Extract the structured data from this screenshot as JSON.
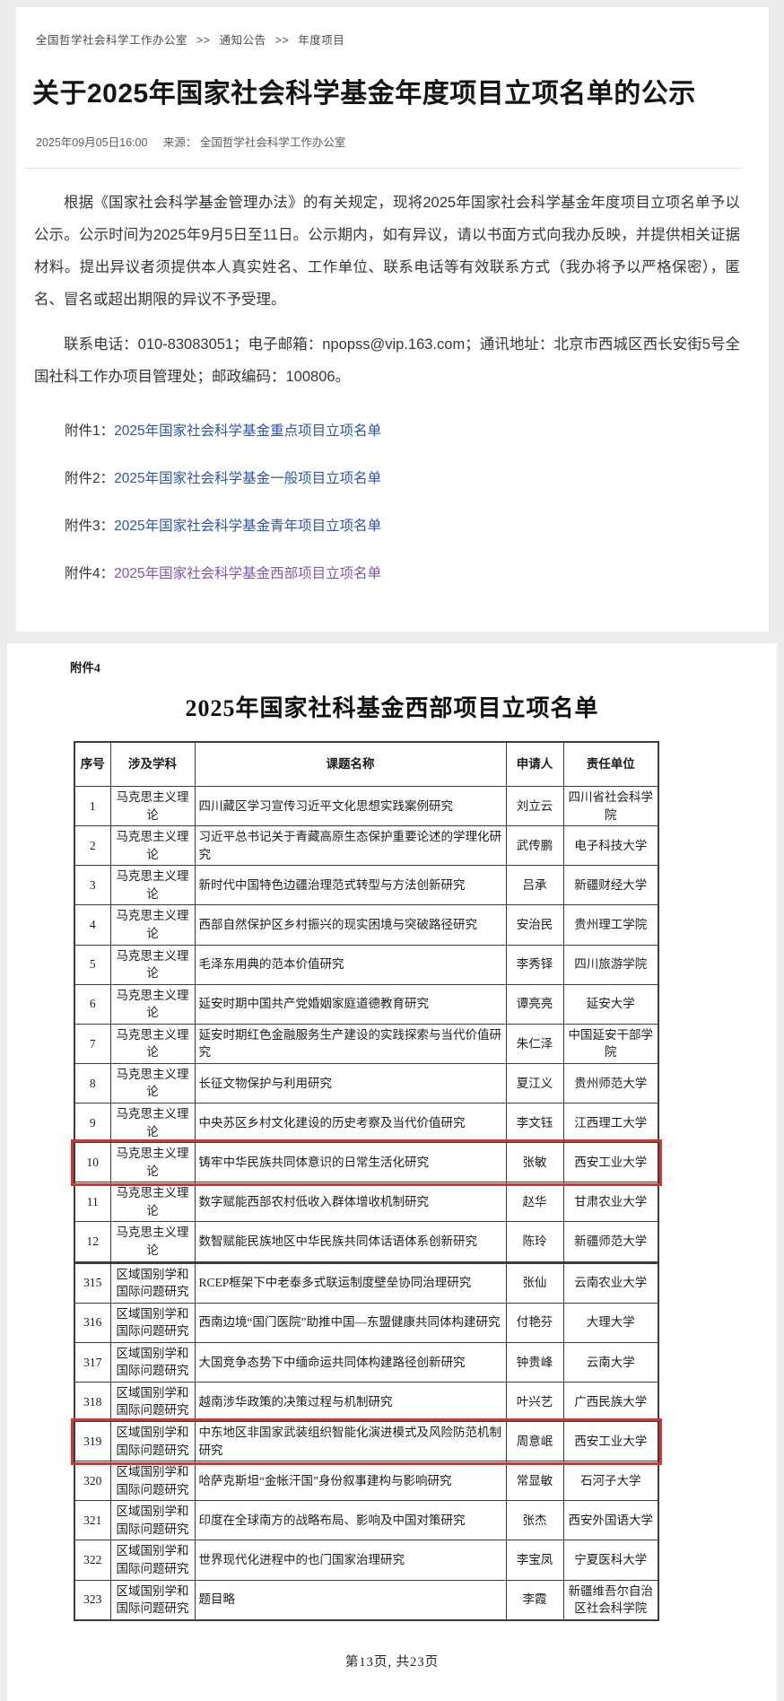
{
  "breadcrumb": {
    "parts": [
      "全国哲学社会科学工作办公室",
      "通知公告",
      "年度项目"
    ],
    "separator": ">>"
  },
  "article": {
    "title": "关于2025年国家社会科学基金年度项目立项名单的公示",
    "date": "2025年09月05日16:00",
    "source_label": "来源：",
    "source": "全国哲学社会科学工作办公室",
    "paragraphs": [
      "根据《国家社会科学基金管理办法》的有关规定，现将2025年国家社会科学基金年度项目立项名单予以公示。公示时间为2025年9月5日至11日。公示期内，如有异议，请以书面方式向我办反映，并提供相关证据材料。提出异议者须提供本人真实姓名、工作单位、联系电话等有效联系方式（我办将予以严格保密），匿名、冒名或超出期限的异议不予受理。",
      "联系电话：010-83083051；电子邮箱：npopss@vip.163.com；通讯地址：北京市西城区西长安街5号全国社科工作办项目管理处；邮政编码：100806。"
    ],
    "attachments": [
      {
        "label": "附件1：",
        "link": "2025年国家社会科学基金重点项目立项名单"
      },
      {
        "label": "附件2：",
        "link": "2025年国家社会科学基金一般项目立项名单"
      },
      {
        "label": "附件3：",
        "link": "2025年国家社会科学基金青年项目立项名单"
      },
      {
        "label": "附件4：",
        "link": "2025年国家社会科学基金西部项目立项名单"
      }
    ]
  },
  "attachment_doc": {
    "label": "附件4",
    "title": "2025年国家社科基金西部项目立项名单",
    "table": {
      "headers": [
        "序号",
        "涉及学科",
        "课题名称",
        "申请人",
        "责任单位"
      ],
      "sections": [
        {
          "rows": [
            {
              "no": "1",
              "subject": "马克思主义理论",
              "title": "四川藏区学习宣传习近平文化思想实践案例研究",
              "applicant": "刘立云",
              "org": "四川省社会科学院",
              "highlight": false
            },
            {
              "no": "2",
              "subject": "马克思主义理论",
              "title": "习近平总书记关于青藏高原生态保护重要论述的学理化研究",
              "applicant": "武传鹏",
              "org": "电子科技大学",
              "highlight": false
            },
            {
              "no": "3",
              "subject": "马克思主义理论",
              "title": "新时代中国特色边疆治理范式转型与方法创新研究",
              "applicant": "吕承",
              "org": "新疆财经大学",
              "highlight": false
            },
            {
              "no": "4",
              "subject": "马克思主义理论",
              "title": "西部自然保护区乡村振兴的现实困境与突破路径研究",
              "applicant": "安治民",
              "org": "贵州理工学院",
              "highlight": false
            },
            {
              "no": "5",
              "subject": "马克思主义理论",
              "title": "毛泽东用典的范本价值研究",
              "applicant": "李秀铎",
              "org": "四川旅游学院",
              "highlight": false
            },
            {
              "no": "6",
              "subject": "马克思主义理论",
              "title": "延安时期中国共产党婚姻家庭道德教育研究",
              "applicant": "谭亮亮",
              "org": "延安大学",
              "highlight": false
            },
            {
              "no": "7",
              "subject": "马克思主义理论",
              "title": "延安时期红色金融服务生产建设的实践探索与当代价值研究",
              "applicant": "朱仁泽",
              "org": "中国延安干部学院",
              "highlight": false
            },
            {
              "no": "8",
              "subject": "马克思主义理论",
              "title": "长征文物保护与利用研究",
              "applicant": "夏江义",
              "org": "贵州师范大学",
              "highlight": false
            },
            {
              "no": "9",
              "subject": "马克思主义理论",
              "title": "中央苏区乡村文化建设的历史考察及当代价值研究",
              "applicant": "李文钰",
              "org": "江西理工大学",
              "highlight": false
            },
            {
              "no": "10",
              "subject": "马克思主义理论",
              "title": "铸牢中华民族共同体意识的日常生活化研究",
              "applicant": "张敏",
              "org": "西安工业大学",
              "highlight": true
            },
            {
              "no": "11",
              "subject": "马克思主义理论",
              "title": "数字赋能西部农村低收入群体增收机制研究",
              "applicant": "赵华",
              "org": "甘肃农业大学",
              "highlight": false
            },
            {
              "no": "12",
              "subject": "马克思主义理论",
              "title": "数智赋能民族地区中华民族共同体话语体系创新研究",
              "applicant": "陈玲",
              "org": "新疆师范大学",
              "highlight": false
            }
          ]
        },
        {
          "rows": [
            {
              "no": "315",
              "subject": "区域国别学和国际问题研究",
              "title": "RCEP框架下中老泰多式联运制度壁垒协同治理研究",
              "applicant": "张仙",
              "org": "云南农业大学",
              "highlight": false
            },
            {
              "no": "316",
              "subject": "区域国别学和国际问题研究",
              "title": "西南边境“国门医院”助推中国—东盟健康共同体构建研究",
              "applicant": "付艳芬",
              "org": "大理大学",
              "highlight": false
            },
            {
              "no": "317",
              "subject": "区域国别学和国际问题研究",
              "title": "大国竞争态势下中缅命运共同体构建路径创新研究",
              "applicant": "钟贵峰",
              "org": "云南大学",
              "highlight": false
            },
            {
              "no": "318",
              "subject": "区域国别学和国际问题研究",
              "title": "越南涉华政策的决策过程与机制研究",
              "applicant": "叶兴艺",
              "org": "广西民族大学",
              "highlight": false
            },
            {
              "no": "319",
              "subject": "区域国别学和国际问题研究",
              "title": "中东地区非国家武装组织智能化演进模式及风险防范机制研究",
              "applicant": "周意岷",
              "org": "西安工业大学",
              "highlight": true
            },
            {
              "no": "320",
              "subject": "区域国别学和国际问题研究",
              "title": "哈萨克斯坦“金帐汗国”身份叙事建构与影响研究",
              "applicant": "常显敏",
              "org": "石河子大学",
              "highlight": false
            },
            {
              "no": "321",
              "subject": "区域国别学和国际问题研究",
              "title": "印度在全球南方的战略布局、影响及中国对策研究",
              "applicant": "张杰",
              "org": "西安外国语大学",
              "highlight": false
            },
            {
              "no": "322",
              "subject": "区域国别学和国际问题研究",
              "title": "世界现代化进程中的也门国家治理研究",
              "applicant": "李宝凤",
              "org": "宁夏医科大学",
              "highlight": false
            },
            {
              "no": "323",
              "subject": "区域国别学和国际问题研究",
              "title": "题目略",
              "applicant": "李霞",
              "org": "新疆维吾尔自治区社会科学院",
              "highlight": false
            }
          ]
        }
      ]
    },
    "pagination": "第13页, 共23页"
  },
  "colors": {
    "link_blue": "#2e55a8",
    "link_visited_purple": "#7d58a8",
    "highlight_red": "#cf3732",
    "page_background": "#ededed"
  }
}
